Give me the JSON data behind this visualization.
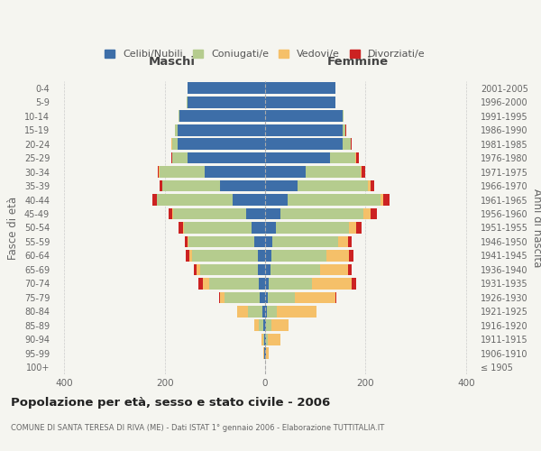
{
  "age_groups": [
    "100+",
    "95-99",
    "90-94",
    "85-89",
    "80-84",
    "75-79",
    "70-74",
    "65-69",
    "60-64",
    "55-59",
    "50-54",
    "45-49",
    "40-44",
    "35-39",
    "30-34",
    "25-29",
    "20-24",
    "15-19",
    "10-14",
    "5-9",
    "0-4"
  ],
  "birth_years": [
    "≤ 1905",
    "1906-1910",
    "1911-1915",
    "1916-1920",
    "1921-1925",
    "1926-1930",
    "1931-1935",
    "1936-1940",
    "1941-1945",
    "1946-1950",
    "1951-1955",
    "1956-1960",
    "1961-1965",
    "1966-1970",
    "1971-1975",
    "1976-1980",
    "1981-1985",
    "1986-1990",
    "1991-1995",
    "1996-2000",
    "2001-2005"
  ],
  "maschi": {
    "celibi": [
      0,
      1,
      1,
      3,
      5,
      10,
      12,
      14,
      15,
      22,
      27,
      38,
      65,
      90,
      120,
      155,
      175,
      175,
      170,
      155,
      155
    ],
    "coniugati": [
      0,
      1,
      3,
      10,
      30,
      70,
      100,
      115,
      130,
      130,
      135,
      145,
      150,
      115,
      90,
      30,
      10,
      5,
      2,
      1,
      0
    ],
    "vedovi": [
      0,
      1,
      3,
      8,
      20,
      10,
      12,
      8,
      5,
      3,
      2,
      1,
      1,
      0,
      1,
      0,
      1,
      0,
      0,
      0,
      0
    ],
    "divorziati": [
      0,
      0,
      0,
      0,
      0,
      2,
      8,
      5,
      8,
      5,
      8,
      8,
      8,
      5,
      2,
      2,
      1,
      0,
      0,
      0,
      0
    ]
  },
  "femmine": {
    "nubili": [
      0,
      1,
      1,
      2,
      3,
      5,
      8,
      10,
      12,
      15,
      22,
      30,
      45,
      65,
      80,
      130,
      155,
      155,
      155,
      140,
      140
    ],
    "coniugate": [
      0,
      1,
      5,
      10,
      20,
      55,
      85,
      100,
      110,
      130,
      145,
      165,
      185,
      140,
      110,
      50,
      15,
      5,
      2,
      0,
      0
    ],
    "vedove": [
      0,
      5,
      25,
      35,
      80,
      80,
      80,
      55,
      45,
      20,
      15,
      15,
      5,
      5,
      2,
      2,
      1,
      0,
      0,
      0,
      0
    ],
    "divorziate": [
      0,
      0,
      0,
      0,
      0,
      2,
      8,
      8,
      8,
      8,
      10,
      12,
      12,
      8,
      8,
      5,
      2,
      1,
      0,
      0,
      0
    ]
  },
  "colors": {
    "celibi": "#3d6ea8",
    "coniugati": "#b5cc8e",
    "vedovi": "#f5c069",
    "divorziati": "#cc2222"
  },
  "xlim": 420,
  "title": "Popolazione per età, sesso e stato civile - 2006",
  "subtitle": "COMUNE DI SANTA TERESA DI RIVA (ME) - Dati ISTAT 1° gennaio 2006 - Elaborazione TUTTITALIA.IT",
  "ylabel_left": "Fasce di età",
  "ylabel_right": "Anni di nascita",
  "xlabel_maschi": "Maschi",
  "xlabel_femmine": "Femmine",
  "bg_color": "#f5f5f0",
  "legend_labels": [
    "Celibi/Nubili",
    "Coniugati/e",
    "Vedovi/e",
    "Divorziati/e"
  ]
}
